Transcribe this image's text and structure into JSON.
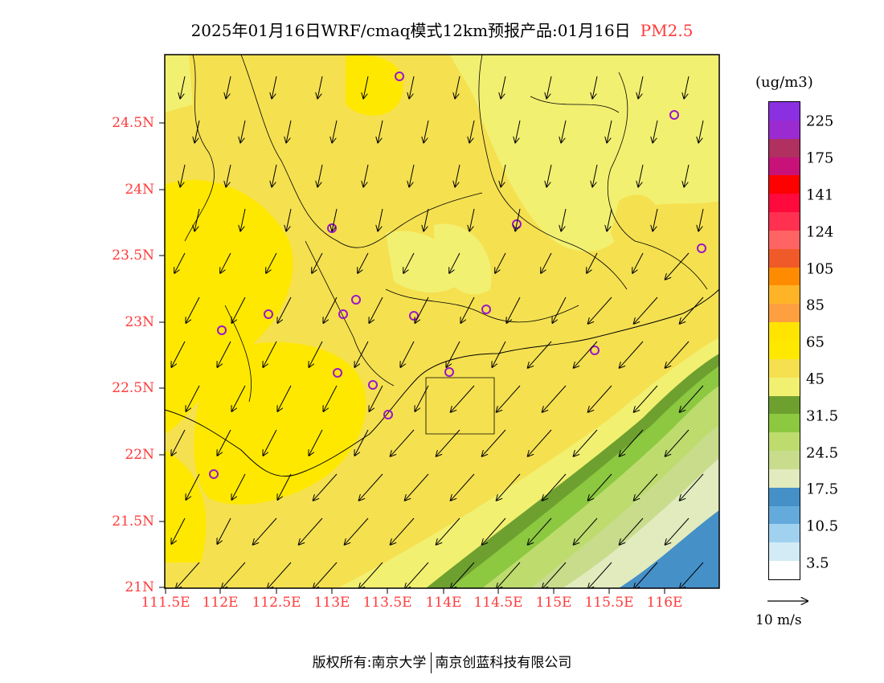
{
  "title": {
    "main": "2025年01月16日WRF/cmaq模式12km预报产品:01月16日",
    "variable": "PM2.5"
  },
  "axes": {
    "y_labels": [
      "24.5N",
      "24N",
      "23.5N",
      "23N",
      "22.5N",
      "22N",
      "21.5N",
      "21N"
    ],
    "x_labels": [
      "111.5E",
      "112E",
      "112.5E",
      "113E",
      "113.5E",
      "114E",
      "114.5E",
      "115E",
      "115.5E",
      "116E"
    ]
  },
  "legend": {
    "unit": "(ug/m3)",
    "colors": [
      "#8a30e0",
      "#9b2ad0",
      "#b03060",
      "#c8127a",
      "#ff0000",
      "#ff0a3c",
      "#ff3050",
      "#ff6464",
      "#f05a28",
      "#ff8c00",
      "#ffb428",
      "#ffa040",
      "#ffe400",
      "#ffe800",
      "#f5e050",
      "#f2f070",
      "#6ea030",
      "#8cc840",
      "#bedc6e",
      "#c8dc8c",
      "#e1ebbe",
      "#4690c8",
      "#64aadc",
      "#a0d2f0",
      "#d2ebf5",
      "#ffffff"
    ],
    "labels": [
      "225",
      "175",
      "141",
      "124",
      "105",
      "85",
      "65",
      "45",
      "31.5",
      "24.5",
      "17.5",
      "10.5",
      "3.5"
    ]
  },
  "wind_reference": "10 m/s",
  "footer": {
    "copyright": "版权所有:南京大学",
    "company": "南京创蓝科技有限公司"
  }
}
